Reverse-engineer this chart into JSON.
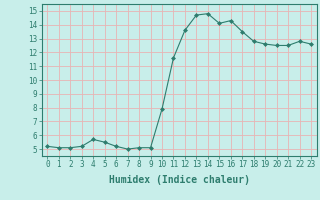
{
  "x": [
    0,
    1,
    2,
    3,
    4,
    5,
    6,
    7,
    8,
    9,
    10,
    11,
    12,
    13,
    14,
    15,
    16,
    17,
    18,
    19,
    20,
    21,
    22,
    23
  ],
  "y": [
    5.2,
    5.1,
    5.1,
    5.2,
    5.7,
    5.5,
    5.2,
    5.0,
    5.1,
    5.1,
    7.9,
    11.6,
    13.6,
    14.7,
    14.8,
    14.1,
    14.3,
    13.5,
    12.8,
    12.6,
    12.5,
    12.5,
    12.8,
    12.6
  ],
  "line_color": "#2e7d6e",
  "marker": "D",
  "marker_size": 2,
  "bg_color": "#c8eeea",
  "grid_color": "#e8b4b4",
  "xlabel": "Humidex (Indice chaleur)",
  "xlim": [
    -0.5,
    23.5
  ],
  "ylim": [
    4.5,
    15.5
  ],
  "yticks": [
    5,
    6,
    7,
    8,
    9,
    10,
    11,
    12,
    13,
    14,
    15
  ],
  "xticks": [
    0,
    1,
    2,
    3,
    4,
    5,
    6,
    7,
    8,
    9,
    10,
    11,
    12,
    13,
    14,
    15,
    16,
    17,
    18,
    19,
    20,
    21,
    22,
    23
  ],
  "tick_label_fontsize": 5.5,
  "xlabel_fontsize": 7,
  "axis_color": "#2e7d6e",
  "tick_color": "#2e7d6e"
}
